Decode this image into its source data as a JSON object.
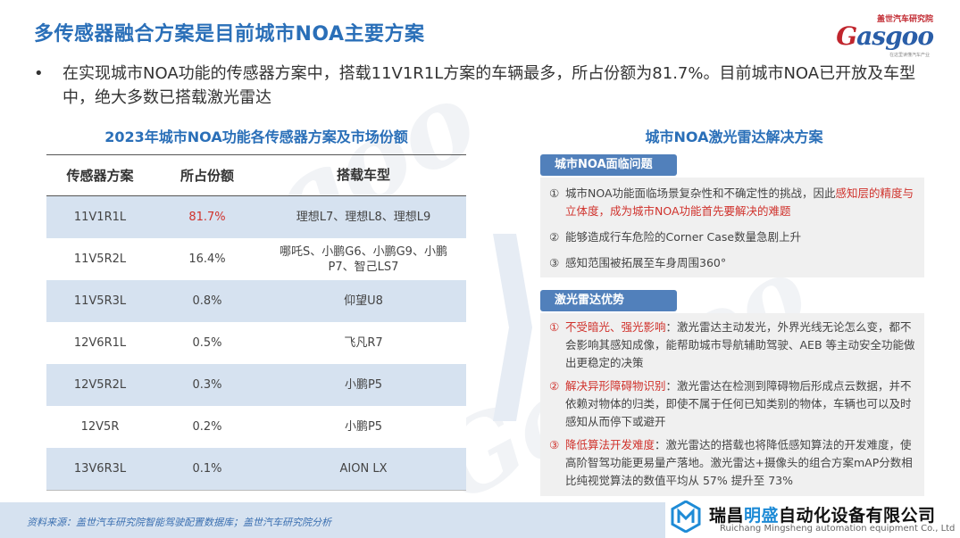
{
  "header": {
    "title": "多传感器融合方案是目前城市NOA主要方案",
    "logo_top": "盖世汽车研究院",
    "logo_word": "asgoo",
    "logo_g": "G",
    "logo_sub": "在这里读懂汽车产业"
  },
  "bullet": {
    "dot": "•",
    "text": "在实现城市NOA功能的传感器方案中，搭载11V1R1L方案的车辆最多，所占份额为81.7%。目前城市NOA已开放及车型中，绝大多数已搭载激光雷达"
  },
  "table": {
    "title": "2023年城市NOA功能各传感器方案及市场份额",
    "headers": [
      "传感器方案",
      "所占份额",
      "搭载车型"
    ],
    "rows": [
      {
        "scheme": "11V1R1L",
        "share": "81.7%",
        "models": "理想L7、理想L8、理想L9"
      },
      {
        "scheme": "11V5R2L",
        "share": "16.4%",
        "models": "哪吒S、小鹏G6、小鹏G9、小鹏P7、智己LS7"
      },
      {
        "scheme": "11V5R3L",
        "share": "0.8%",
        "models": "仰望U8"
      },
      {
        "scheme": "12V6R1L",
        "share": "0.5%",
        "models": "飞凡R7"
      },
      {
        "scheme": "12V5R2L",
        "share": "0.3%",
        "models": "小鹏P5"
      },
      {
        "scheme": "12V5R",
        "share": "0.2%",
        "models": "小鹏P5"
      },
      {
        "scheme": "13V6R3L",
        "share": "0.1%",
        "models": "AION LX"
      }
    ]
  },
  "right": {
    "title": "城市NOA激光雷达解决方案",
    "tag1": "城市NOA面临问题",
    "problems": [
      {
        "num": "①",
        "text_a": "城市NOA功能面临场景复杂性和不确定性的挑战，因此",
        "text_hl": "感知层的精度与立体度，成为城市NOA功能首先要解决的难题"
      },
      {
        "num": "②",
        "text_a": "能够造成行车危险的Corner Case数量急剧上升",
        "text_hl": ""
      },
      {
        "num": "③",
        "text_a": "感知范围被拓展至车身周围360°",
        "text_hl": ""
      }
    ],
    "tag2": "激光雷达优势",
    "advantages": [
      {
        "num": "①",
        "head": "不受暗光、强光影响",
        "text": "：激光雷达主动发光，外界光线无论怎么变，都不会影响其感知成像，能帮助城市导航辅助驾驶、AEB 等主动安全功能做出更稳定的决策"
      },
      {
        "num": "②",
        "head": "解决异形障碍物识别",
        "text": "：激光雷达在检测到障碍物后形成点云数据，并不依赖对物体的归类，即使不属于任何已知类别的物体，车辆也可以及时感知从而停下或避开"
      },
      {
        "num": "③",
        "head": "降低算法开发难度",
        "text": "：激光雷达的搭载也将降低感知算法的开发难度，使高阶智驾功能更易量产落地。激光雷达+摄像头的组合方案mAP分数相比纯视觉算法的数值平均从 57% 提升至 73%"
      }
    ]
  },
  "footer": {
    "source": "资料来源：盖世汽车研究院智能驾驶配置数据库；盖世汽车研究院分析"
  },
  "company": {
    "name_a": "瑞昌",
    "name_hi": "明盛",
    "name_b": "自动化设备有限公司",
    "name_en": "Ruichang Mingsheng automation equipment Co., Ltd"
  },
  "colors": {
    "accent": "#2a6fb8",
    "highlight": "#d0322c",
    "row_band": "#d6e2f0",
    "tag_bg": "#5180bb"
  }
}
